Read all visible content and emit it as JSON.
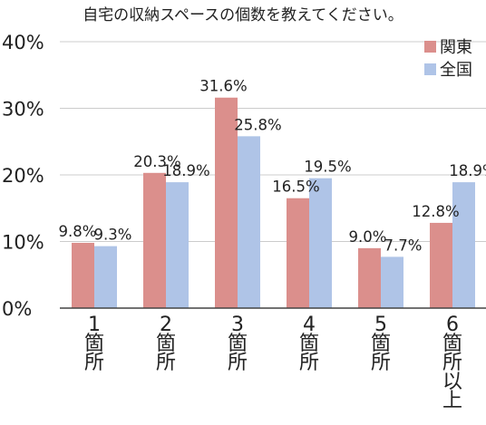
{
  "chart_data": {
    "type": "bar",
    "title": "自宅の収納スペースの個数を教えてください。",
    "categories": [
      [
        "1",
        "箇",
        "所"
      ],
      [
        "2",
        "箇",
        "所"
      ],
      [
        "3",
        "箇",
        "所"
      ],
      [
        "4",
        "箇",
        "所"
      ],
      [
        "5",
        "箇",
        "所"
      ],
      [
        "6",
        "箇",
        "所",
        "以",
        "上"
      ]
    ],
    "series": [
      {
        "name": "関東",
        "color": "#db8f8c",
        "values": [
          9.8,
          20.3,
          31.6,
          16.5,
          9.0,
          12.8
        ],
        "labels": [
          "9.8%",
          "20.3%",
          "31.6%",
          "16.5%",
          "9.0%",
          "12.8%"
        ]
      },
      {
        "name": "全国",
        "color": "#afc4e7",
        "values": [
          9.3,
          18.9,
          25.8,
          19.5,
          7.7,
          18.9
        ],
        "labels": [
          "9.3%",
          "18.9%",
          "25.8%",
          "19.5%",
          "7.7%",
          "18.9%"
        ]
      }
    ],
    "y_ticks": [
      "0%",
      "10%",
      "20%",
      "30%",
      "40%"
    ],
    "ylim": [
      0,
      40
    ],
    "xlabel": "",
    "ylabel": "",
    "legend_position": "top-right",
    "grid": true
  }
}
